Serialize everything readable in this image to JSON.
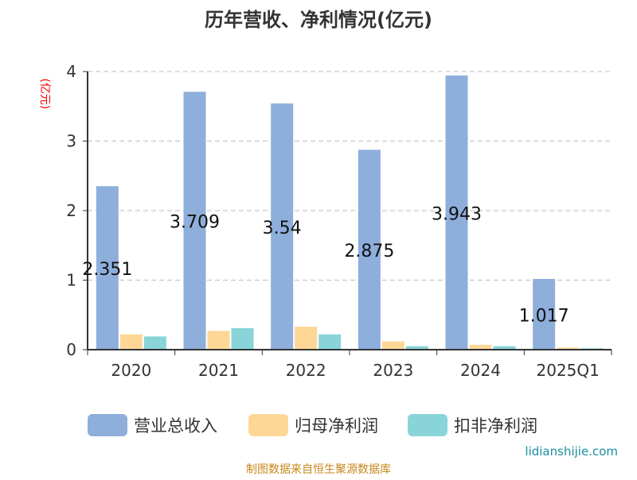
{
  "chart_data": {
    "type": "bar",
    "title": "历年营收、净利情况(亿元)",
    "ylabel": "(亿元)",
    "ylim": [
      0,
      4
    ],
    "yticks": [
      0,
      1,
      2,
      3,
      4
    ],
    "grid": true,
    "legend_placement": "bottom",
    "categories": [
      "2020",
      "2021",
      "2022",
      "2023",
      "2024",
      "2025Q1"
    ],
    "series": [
      {
        "name": "营业总收入",
        "color": "#8eaedb",
        "values": [
          2.351,
          3.709,
          3.54,
          2.875,
          3.943,
          1.017
        ],
        "labels": [
          "2.351",
          "3.709",
          "3.54",
          "2.875",
          "3.943",
          "1.017"
        ]
      },
      {
        "name": "归母净利润",
        "color": "#fed797",
        "values": [
          0.22,
          0.27,
          0.33,
          0.12,
          0.07,
          0.03
        ]
      },
      {
        "name": "扣非净利润",
        "color": "#88d4d8",
        "values": [
          0.19,
          0.31,
          0.22,
          0.05,
          0.05,
          0.02
        ]
      }
    ]
  },
  "watermark": "lidianshijie.com",
  "source": "制图数据来自恒生聚源数据库"
}
